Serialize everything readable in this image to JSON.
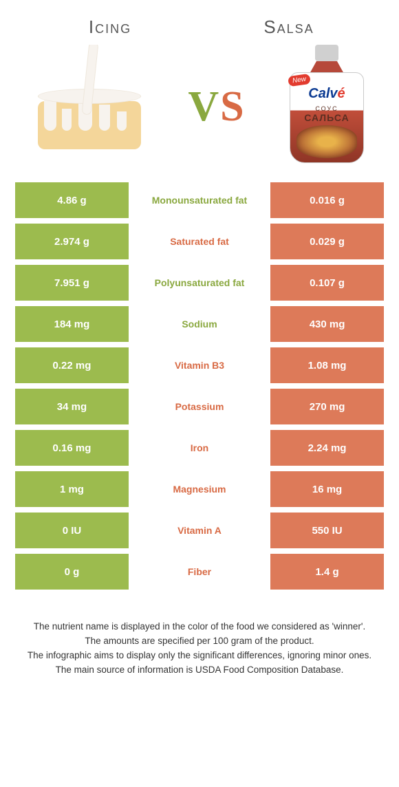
{
  "colors": {
    "green": "#9cbb4e",
    "green_text": "#8aa83f",
    "orange": "#dd7a59",
    "orange_text": "#d86a44",
    "white": "#ffffff"
  },
  "foods": {
    "left": {
      "title": "Icing"
    },
    "right": {
      "title": "Salsa"
    }
  },
  "vs": {
    "v": "V",
    "s": "S"
  },
  "pouch": {
    "new": "New",
    "brand_main": "Calv",
    "brand_accent": "é",
    "sub1": "СОУС",
    "sub2": "САЛЬСА"
  },
  "rows": [
    {
      "left": "4.86 g",
      "label": "Monounsaturated fat",
      "right": "0.016 g",
      "winner": "green"
    },
    {
      "left": "2.974 g",
      "label": "Saturated fat",
      "right": "0.029 g",
      "winner": "orange"
    },
    {
      "left": "7.951 g",
      "label": "Polyunsaturated fat",
      "right": "0.107 g",
      "winner": "green"
    },
    {
      "left": "184 mg",
      "label": "Sodium",
      "right": "430 mg",
      "winner": "green"
    },
    {
      "left": "0.22 mg",
      "label": "Vitamin B3",
      "right": "1.08 mg",
      "winner": "orange"
    },
    {
      "left": "34 mg",
      "label": "Potassium",
      "right": "270 mg",
      "winner": "orange"
    },
    {
      "left": "0.16 mg",
      "label": "Iron",
      "right": "2.24 mg",
      "winner": "orange"
    },
    {
      "left": "1 mg",
      "label": "Magnesium",
      "right": "16 mg",
      "winner": "orange"
    },
    {
      "left": "0 IU",
      "label": "Vitamin A",
      "right": "550 IU",
      "winner": "orange"
    },
    {
      "left": "0 g",
      "label": "Fiber",
      "right": "1.4 g",
      "winner": "orange"
    }
  ],
  "notes": [
    "The nutrient name is displayed in the color of the food we considered as 'winner'.",
    "The amounts are specified per 100 gram of the product.",
    "The infographic aims to display only the significant differences, ignoring minor ones.",
    "The main source of information is USDA Food Composition Database."
  ]
}
